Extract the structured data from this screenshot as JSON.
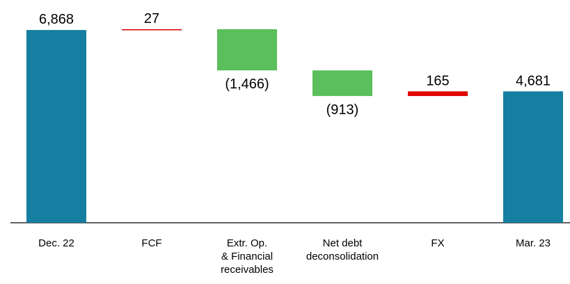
{
  "chart_data": {
    "type": "waterfall",
    "categories": [
      "Dec. 22",
      "FCF",
      "Extr. Op.\n& Financial\nreceivables",
      "Net debt\ndeconsolidation",
      "FX",
      "Mar. 23"
    ],
    "values": [
      6868,
      27,
      -1466,
      -913,
      165,
      4681
    ],
    "value_labels": [
      "6,868",
      "27",
      "(1,466)",
      "(913)",
      "165",
      "4,681"
    ],
    "measure": [
      "absolute",
      "relative",
      "relative",
      "relative",
      "relative",
      "total"
    ],
    "colors": [
      "#167ea0",
      "#e00000",
      "#5bbf5b",
      "#5bbf5b",
      "#e00000",
      "#167ea0"
    ]
  }
}
